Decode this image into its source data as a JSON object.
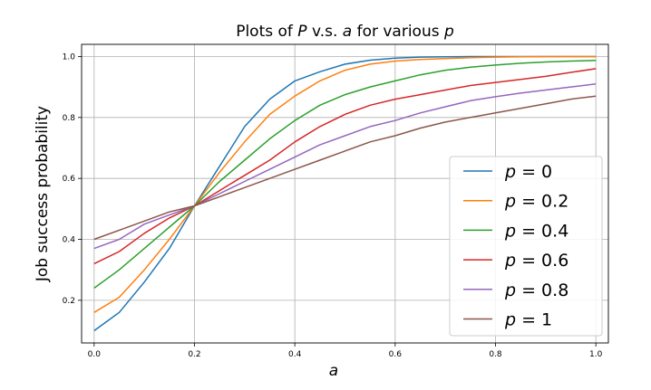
{
  "chart_data": {
    "type": "line",
    "title": "Plots of P v.s. a for various p",
    "title_parts": {
      "prefix": "Plots of ",
      "var1": "P",
      "middle": " v.s. ",
      "var2": "a",
      "suffix": " for various ",
      "var3": "p"
    },
    "xlabel": "a",
    "ylabel": "Job success probability",
    "xlim": [
      -0.025,
      1.025
    ],
    "ylim": [
      0.06,
      1.04
    ],
    "xticks": [
      0.0,
      0.2,
      0.4,
      0.6,
      0.8,
      1.0
    ],
    "xtick_labels": [
      "0.0",
      "0.2",
      "0.4",
      "0.6",
      "0.8",
      "1.0"
    ],
    "yticks": [
      0.2,
      0.4,
      0.6,
      0.8,
      1.0
    ],
    "ytick_labels": [
      "0.2",
      "0.4",
      "0.6",
      "0.8",
      "1.0"
    ],
    "grid": true,
    "legend_position": "lower-right",
    "x": [
      0.0,
      0.05,
      0.1,
      0.15,
      0.2,
      0.25,
      0.3,
      0.35,
      0.4,
      0.45,
      0.5,
      0.55,
      0.6,
      0.65,
      0.7,
      0.75,
      0.8,
      0.85,
      0.9,
      0.95,
      1.0
    ],
    "series": [
      {
        "name": "p = 0",
        "label_var": "p",
        "label_eq": " = 0",
        "color": "#1f77b4",
        "values": [
          0.1,
          0.16,
          0.26,
          0.37,
          0.51,
          0.64,
          0.77,
          0.86,
          0.92,
          0.95,
          0.975,
          0.988,
          0.995,
          0.998,
          0.999,
          1.0,
          1.0,
          1.0,
          1.0,
          1.0,
          1.0
        ]
      },
      {
        "name": "p = 0.2",
        "label_var": "p",
        "label_eq": " = 0.2",
        "color": "#ff7f0e",
        "values": [
          0.16,
          0.21,
          0.3,
          0.4,
          0.51,
          0.62,
          0.72,
          0.81,
          0.87,
          0.92,
          0.955,
          0.975,
          0.985,
          0.99,
          0.993,
          0.996,
          0.998,
          0.999,
          1.0,
          1.0,
          1.0
        ]
      },
      {
        "name": "p = 0.4",
        "label_var": "p",
        "label_eq": " = 0.4",
        "color": "#2ca02c",
        "values": [
          0.24,
          0.3,
          0.37,
          0.44,
          0.51,
          0.59,
          0.66,
          0.73,
          0.79,
          0.84,
          0.875,
          0.9,
          0.92,
          0.94,
          0.955,
          0.965,
          0.972,
          0.978,
          0.982,
          0.985,
          0.987
        ]
      },
      {
        "name": "p = 0.6",
        "label_var": "p",
        "label_eq": " = 0.6",
        "color": "#d62728",
        "values": [
          0.32,
          0.36,
          0.42,
          0.47,
          0.51,
          0.56,
          0.61,
          0.66,
          0.72,
          0.77,
          0.81,
          0.84,
          0.86,
          0.875,
          0.89,
          0.905,
          0.915,
          0.925,
          0.935,
          0.948,
          0.96
        ]
      },
      {
        "name": "p = 0.8",
        "label_var": "p",
        "label_eq": " = 0.8",
        "color": "#9467bd",
        "values": [
          0.37,
          0.4,
          0.45,
          0.48,
          0.51,
          0.55,
          0.59,
          0.63,
          0.67,
          0.71,
          0.74,
          0.77,
          0.79,
          0.815,
          0.835,
          0.855,
          0.868,
          0.88,
          0.89,
          0.9,
          0.91
        ]
      },
      {
        "name": "p = 1",
        "label_var": "p",
        "label_eq": " = 1",
        "color": "#8c564b",
        "values": [
          0.4,
          0.43,
          0.46,
          0.49,
          0.51,
          0.54,
          0.57,
          0.6,
          0.63,
          0.66,
          0.69,
          0.72,
          0.74,
          0.765,
          0.785,
          0.8,
          0.815,
          0.83,
          0.845,
          0.86,
          0.87
        ]
      }
    ]
  }
}
